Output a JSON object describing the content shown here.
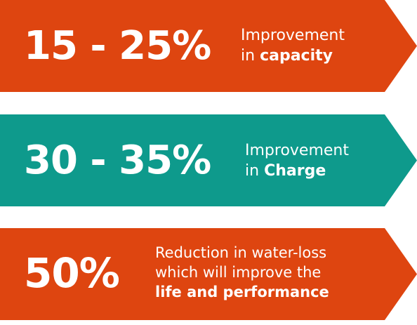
{
  "colors": {
    "orange": "#de4510",
    "teal": "#0e9a8c",
    "text": "#ffffff"
  },
  "banners": [
    {
      "percentage": "15 - 25%",
      "line1": "Improvement",
      "line2_prefix": "in ",
      "line2_bold": "capacity"
    },
    {
      "percentage": "30 - 35%",
      "line1": "Improvement",
      "line2_prefix": "in ",
      "line2_bold": "Charge"
    },
    {
      "percentage": "50%",
      "line1": "Reduction in water-loss",
      "line2": "which will improve the",
      "line3_bold": "life and performance"
    }
  ]
}
